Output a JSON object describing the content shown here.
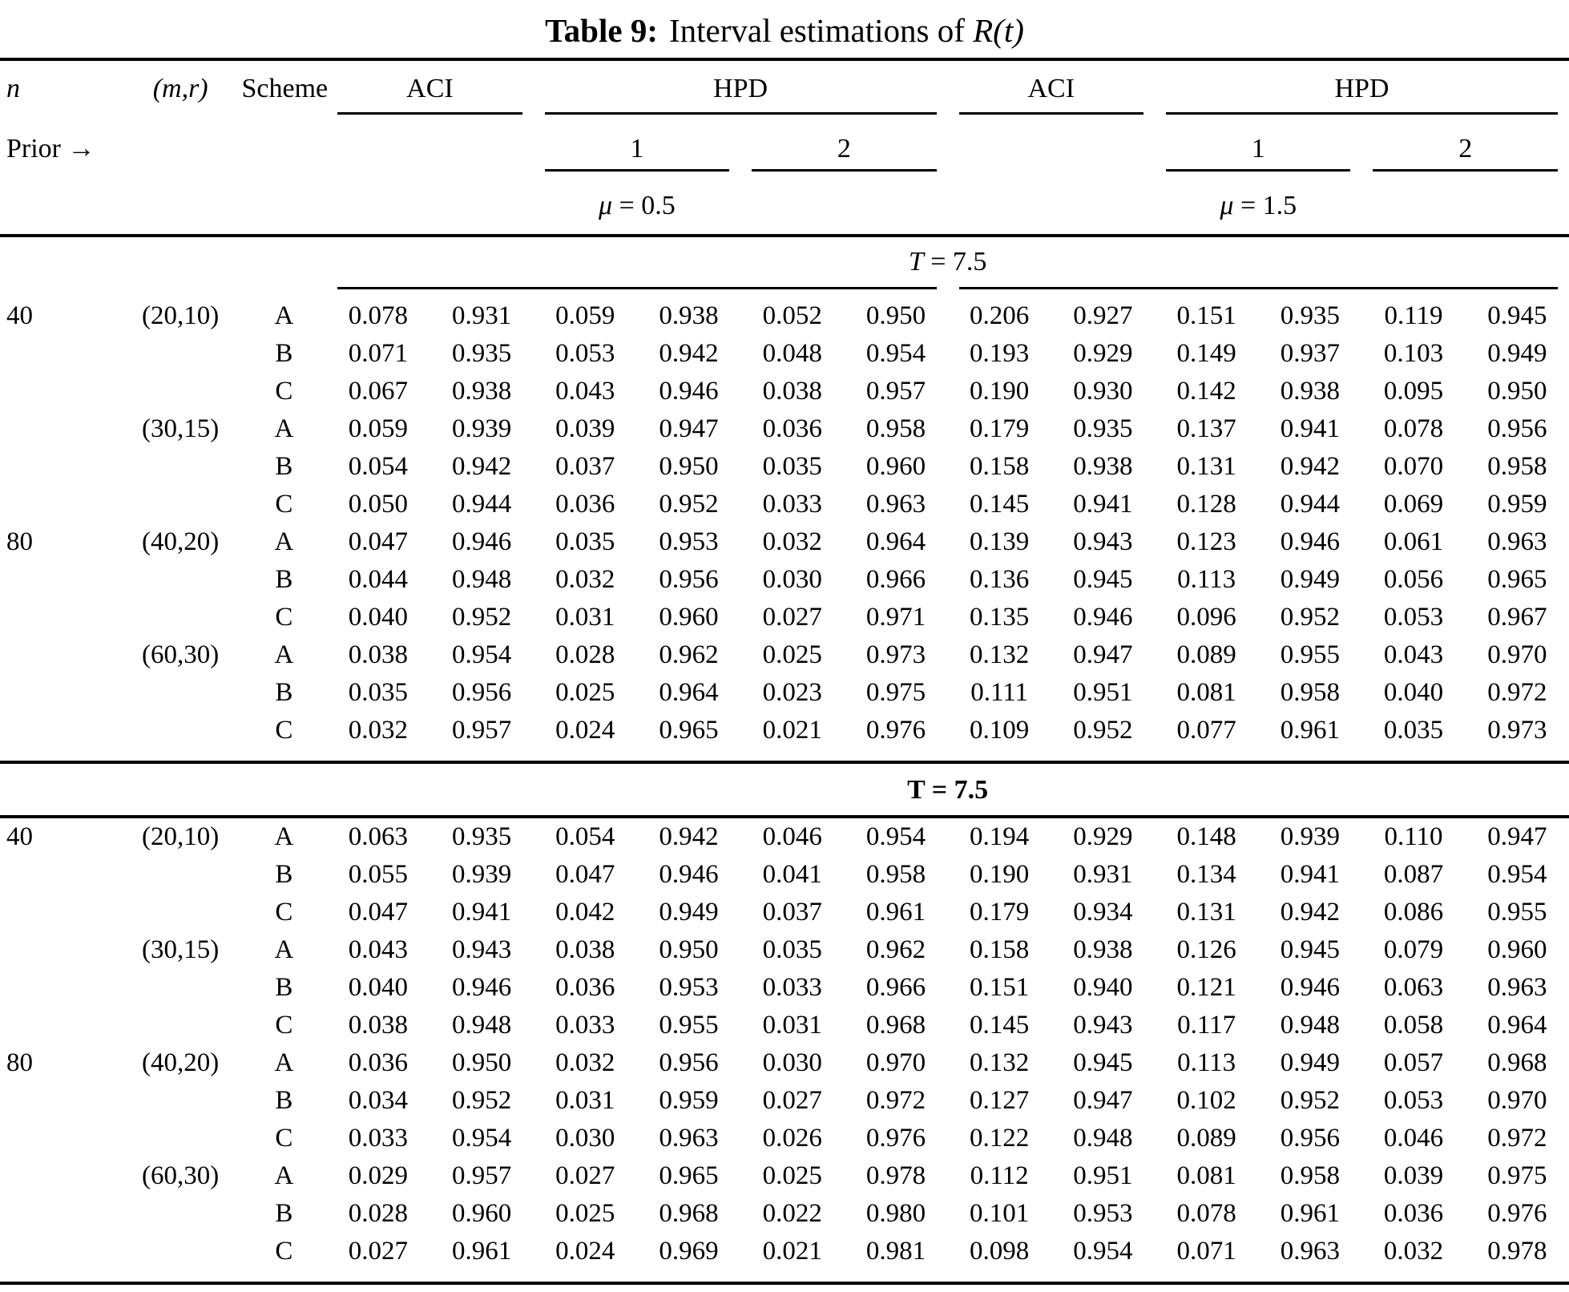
{
  "title": {
    "label": "Table 9:",
    "pre": "Interval estimations of",
    "math": "R(t)"
  },
  "header": {
    "col_n": "n",
    "col_mr": "(m,r)",
    "col_scheme": "Scheme",
    "aci": "ACI",
    "hpd": "HPD",
    "prior": "Prior →",
    "prior_1": "1",
    "prior_2": "2",
    "mu_left_sym": "μ",
    "mu_left_rest": "= 0.5",
    "mu_right_sym": "μ",
    "mu_right_rest": "= 1.5"
  },
  "sections": [
    {
      "heading_var": "T",
      "heading_rest": "= 7.5",
      "band": false,
      "underline": true,
      "rows": [
        {
          "n": "40",
          "mr": "(20,10)",
          "scheme": "A",
          "values": [
            "0.078",
            "0.931",
            "0.059",
            "0.938",
            "0.052",
            "0.950",
            "0.206",
            "0.927",
            "0.151",
            "0.935",
            "0.119",
            "0.945"
          ]
        },
        {
          "n": "",
          "mr": "",
          "scheme": "B",
          "values": [
            "0.071",
            "0.935",
            "0.053",
            "0.942",
            "0.048",
            "0.954",
            "0.193",
            "0.929",
            "0.149",
            "0.937",
            "0.103",
            "0.949"
          ]
        },
        {
          "n": "",
          "mr": "",
          "scheme": "C",
          "values": [
            "0.067",
            "0.938",
            "0.043",
            "0.946",
            "0.038",
            "0.957",
            "0.190",
            "0.930",
            "0.142",
            "0.938",
            "0.095",
            "0.950"
          ]
        },
        {
          "n": "",
          "mr": "(30,15)",
          "scheme": "A",
          "values": [
            "0.059",
            "0.939",
            "0.039",
            "0.947",
            "0.036",
            "0.958",
            "0.179",
            "0.935",
            "0.137",
            "0.941",
            "0.078",
            "0.956"
          ]
        },
        {
          "n": "",
          "mr": "",
          "scheme": "B",
          "values": [
            "0.054",
            "0.942",
            "0.037",
            "0.950",
            "0.035",
            "0.960",
            "0.158",
            "0.938",
            "0.131",
            "0.942",
            "0.070",
            "0.958"
          ]
        },
        {
          "n": "",
          "mr": "",
          "scheme": "C",
          "values": [
            "0.050",
            "0.944",
            "0.036",
            "0.952",
            "0.033",
            "0.963",
            "0.145",
            "0.941",
            "0.128",
            "0.944",
            "0.069",
            "0.959"
          ]
        },
        {
          "n": "80",
          "mr": "(40,20)",
          "scheme": "A",
          "values": [
            "0.047",
            "0.946",
            "0.035",
            "0.953",
            "0.032",
            "0.964",
            "0.139",
            "0.943",
            "0.123",
            "0.946",
            "0.061",
            "0.963"
          ]
        },
        {
          "n": "",
          "mr": "",
          "scheme": "B",
          "values": [
            "0.044",
            "0.948",
            "0.032",
            "0.956",
            "0.030",
            "0.966",
            "0.136",
            "0.945",
            "0.113",
            "0.949",
            "0.056",
            "0.965"
          ]
        },
        {
          "n": "",
          "mr": "",
          "scheme": "C",
          "values": [
            "0.040",
            "0.952",
            "0.031",
            "0.960",
            "0.027",
            "0.971",
            "0.135",
            "0.946",
            "0.096",
            "0.952",
            "0.053",
            "0.967"
          ]
        },
        {
          "n": "",
          "mr": "(60,30)",
          "scheme": "A",
          "values": [
            "0.038",
            "0.954",
            "0.028",
            "0.962",
            "0.025",
            "0.973",
            "0.132",
            "0.947",
            "0.089",
            "0.955",
            "0.043",
            "0.970"
          ]
        },
        {
          "n": "",
          "mr": "",
          "scheme": "B",
          "values": [
            "0.035",
            "0.956",
            "0.025",
            "0.964",
            "0.023",
            "0.975",
            "0.111",
            "0.951",
            "0.081",
            "0.958",
            "0.040",
            "0.972"
          ]
        },
        {
          "n": "",
          "mr": "",
          "scheme": "C",
          "values": [
            "0.032",
            "0.957",
            "0.024",
            "0.965",
            "0.021",
            "0.976",
            "0.109",
            "0.952",
            "0.077",
            "0.961",
            "0.035",
            "0.973"
          ]
        }
      ]
    },
    {
      "heading_var": "T",
      "heading_rest": "= 7.5",
      "band": true,
      "underline": false,
      "rows": [
        {
          "n": "40",
          "mr": "(20,10)",
          "scheme": "A",
          "values": [
            "0.063",
            "0.935",
            "0.054",
            "0.942",
            "0.046",
            "0.954",
            "0.194",
            "0.929",
            "0.148",
            "0.939",
            "0.110",
            "0.947"
          ]
        },
        {
          "n": "",
          "mr": "",
          "scheme": "B",
          "values": [
            "0.055",
            "0.939",
            "0.047",
            "0.946",
            "0.041",
            "0.958",
            "0.190",
            "0.931",
            "0.134",
            "0.941",
            "0.087",
            "0.954"
          ]
        },
        {
          "n": "",
          "mr": "",
          "scheme": "C",
          "values": [
            "0.047",
            "0.941",
            "0.042",
            "0.949",
            "0.037",
            "0.961",
            "0.179",
            "0.934",
            "0.131",
            "0.942",
            "0.086",
            "0.955"
          ]
        },
        {
          "n": "",
          "mr": "(30,15)",
          "scheme": "A",
          "values": [
            "0.043",
            "0.943",
            "0.038",
            "0.950",
            "0.035",
            "0.962",
            "0.158",
            "0.938",
            "0.126",
            "0.945",
            "0.079",
            "0.960"
          ]
        },
        {
          "n": "",
          "mr": "",
          "scheme": "B",
          "values": [
            "0.040",
            "0.946",
            "0.036",
            "0.953",
            "0.033",
            "0.966",
            "0.151",
            "0.940",
            "0.121",
            "0.946",
            "0.063",
            "0.963"
          ]
        },
        {
          "n": "",
          "mr": "",
          "scheme": "C",
          "values": [
            "0.038",
            "0.948",
            "0.033",
            "0.955",
            "0.031",
            "0.968",
            "0.145",
            "0.943",
            "0.117",
            "0.948",
            "0.058",
            "0.964"
          ]
        },
        {
          "n": "80",
          "mr": "(40,20)",
          "scheme": "A",
          "values": [
            "0.036",
            "0.950",
            "0.032",
            "0.956",
            "0.030",
            "0.970",
            "0.132",
            "0.945",
            "0.113",
            "0.949",
            "0.057",
            "0.968"
          ]
        },
        {
          "n": "",
          "mr": "",
          "scheme": "B",
          "values": [
            "0.034",
            "0.952",
            "0.031",
            "0.959",
            "0.027",
            "0.972",
            "0.127",
            "0.947",
            "0.102",
            "0.952",
            "0.053",
            "0.970"
          ]
        },
        {
          "n": "",
          "mr": "",
          "scheme": "C",
          "values": [
            "0.033",
            "0.954",
            "0.030",
            "0.963",
            "0.026",
            "0.976",
            "0.122",
            "0.948",
            "0.089",
            "0.956",
            "0.046",
            "0.972"
          ]
        },
        {
          "n": "",
          "mr": "(60,30)",
          "scheme": "A",
          "values": [
            "0.029",
            "0.957",
            "0.027",
            "0.965",
            "0.025",
            "0.978",
            "0.112",
            "0.951",
            "0.081",
            "0.958",
            "0.039",
            "0.975"
          ]
        },
        {
          "n": "",
          "mr": "",
          "scheme": "B",
          "values": [
            "0.028",
            "0.960",
            "0.025",
            "0.968",
            "0.022",
            "0.980",
            "0.101",
            "0.953",
            "0.078",
            "0.961",
            "0.036",
            "0.976"
          ]
        },
        {
          "n": "",
          "mr": "",
          "scheme": "C",
          "values": [
            "0.027",
            "0.961",
            "0.024",
            "0.969",
            "0.021",
            "0.981",
            "0.098",
            "0.954",
            "0.071",
            "0.963",
            "0.032",
            "0.978"
          ]
        }
      ]
    }
  ]
}
